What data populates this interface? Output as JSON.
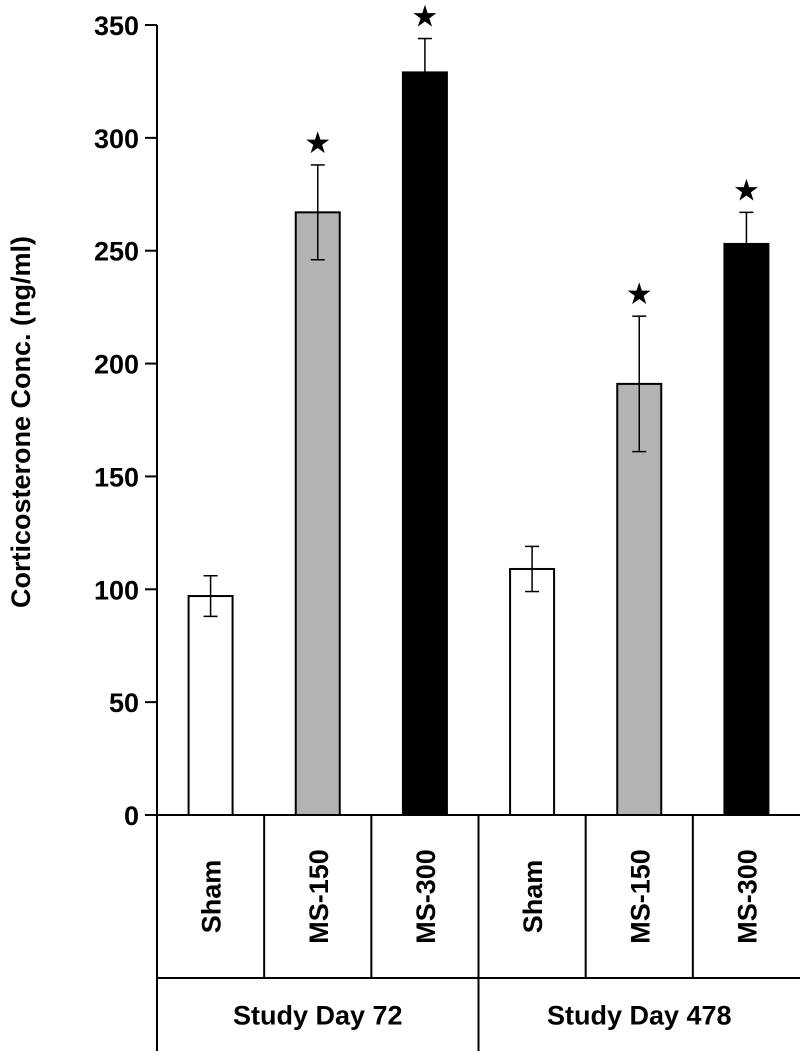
{
  "chart_data": {
    "type": "bar",
    "ylabel": "Corticosterone Conc. (ng/ml)",
    "ylim": [
      0,
      350
    ],
    "yticks": [
      0,
      50,
      100,
      150,
      200,
      250,
      300,
      350
    ],
    "grid": false,
    "groups": [
      "Study Day 72",
      "Study Day 478"
    ],
    "categories": [
      "Sham",
      "MS-150",
      "MS-300",
      "Sham",
      "MS-150",
      "MS-300"
    ],
    "values": [
      97,
      267,
      329,
      109,
      191,
      253
    ],
    "errors": [
      9,
      21,
      15,
      10,
      30,
      14
    ],
    "significant": [
      false,
      true,
      true,
      false,
      true,
      true
    ],
    "significance_marker": "★",
    "bar_colors": [
      "#ffffff",
      "#b3b3b3",
      "#000000",
      "#ffffff",
      "#b3b3b3",
      "#000000"
    ]
  }
}
